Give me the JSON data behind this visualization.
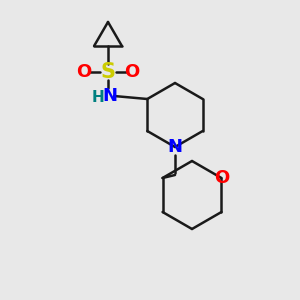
{
  "background_color": "#e8e8e8",
  "bond_color": "#1a1a1a",
  "S_color": "#cccc00",
  "O_color": "#ff0000",
  "N_color": "#0000ff",
  "H_color": "#008080",
  "font_size": 13,
  "line_width": 1.8,
  "figsize": [
    3.0,
    3.0
  ],
  "dpi": 100,
  "xlim": [
    0,
    300
  ],
  "ylim": [
    0,
    300
  ]
}
